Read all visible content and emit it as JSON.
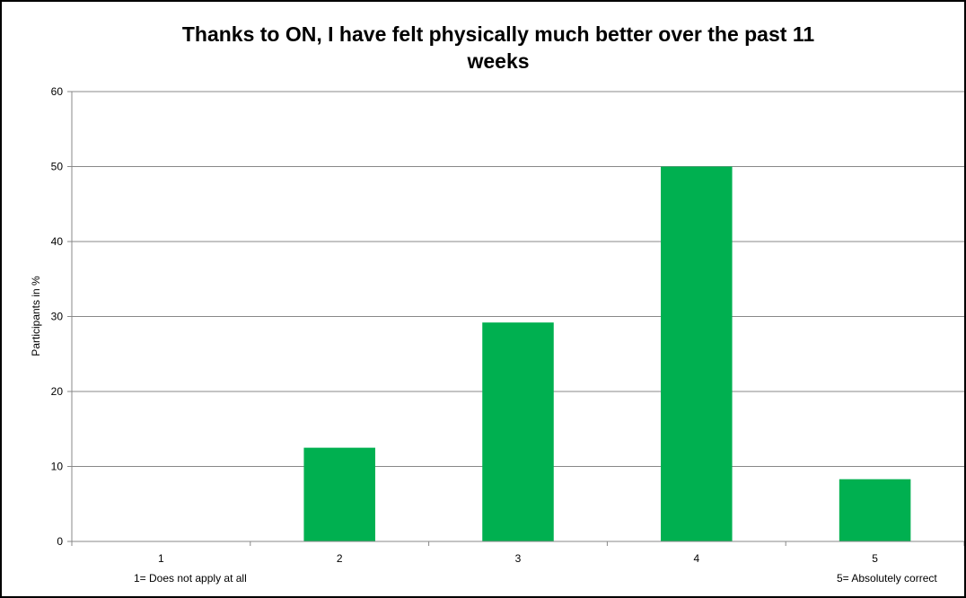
{
  "chart_data": {
    "type": "bar",
    "title_lines": [
      "Thanks to ON, I have felt physically much better over the past 11",
      "weeks"
    ],
    "xlabel": "",
    "ylabel": "Participants in %",
    "categories": [
      "1",
      "2",
      "3",
      "4",
      "5"
    ],
    "values": [
      0,
      12.5,
      29.2,
      50,
      8.3
    ],
    "ylim": [
      0,
      60
    ],
    "yticks": [
      0,
      10,
      20,
      30,
      40,
      50,
      60
    ],
    "grid": true,
    "legend": "none",
    "bar_color": "#00b050",
    "annotations": {
      "low_label": "1= Does not apply at all",
      "high_label": "5= Absolutely correct"
    }
  }
}
